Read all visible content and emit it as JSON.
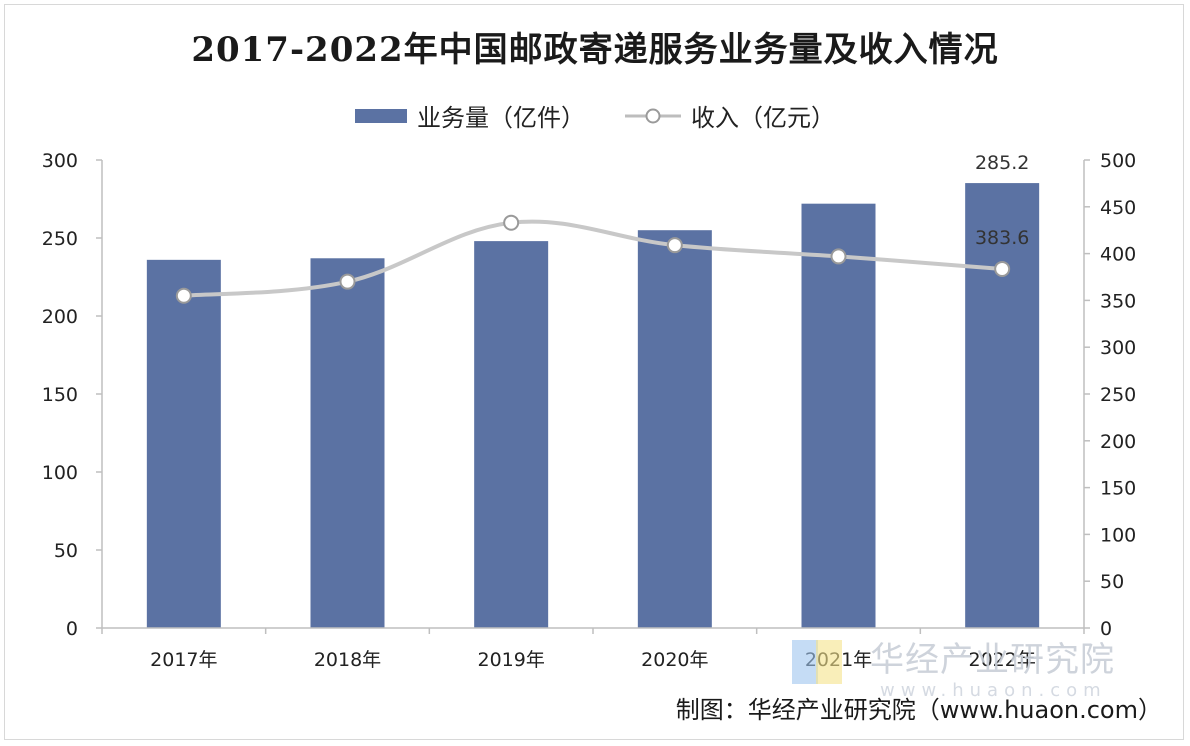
{
  "chart_data": {
    "type": "bar+line",
    "title": "2017-2022年中国邮政寄递服务业务量及收入情况",
    "categories": [
      "2017年",
      "2018年",
      "2019年",
      "2020年",
      "2021年",
      "2022年"
    ],
    "series": [
      {
        "name": "业务量（亿件）",
        "type": "bar",
        "axis": "left",
        "color": "#5b72a3",
        "values": [
          236,
          237,
          248,
          255,
          272,
          285.2
        ]
      },
      {
        "name": "收入（亿元）",
        "type": "line",
        "axis": "right",
        "color": "#c8c8c8",
        "values": [
          355,
          370,
          433,
          409,
          397,
          383.6
        ]
      }
    ],
    "y_left": {
      "min": 0,
      "max": 300,
      "ticks": [
        "0",
        "50",
        "100",
        "150",
        "200",
        "250",
        "300"
      ]
    },
    "y_right": {
      "min": 0,
      "max": 500,
      "ticks": [
        "0",
        "50",
        "100",
        "150",
        "200",
        "250",
        "300",
        "350",
        "400",
        "450",
        "500"
      ]
    },
    "data_labels": [
      {
        "series": 0,
        "index": 5,
        "text": "285.2"
      },
      {
        "series": 1,
        "index": 5,
        "text": "383.6"
      }
    ],
    "legend_position": "top-center"
  },
  "watermark": {
    "name": "华经产业研究院",
    "url": "www.huaon.com"
  },
  "source": "制图：华经产业研究院（www.huaon.com）"
}
